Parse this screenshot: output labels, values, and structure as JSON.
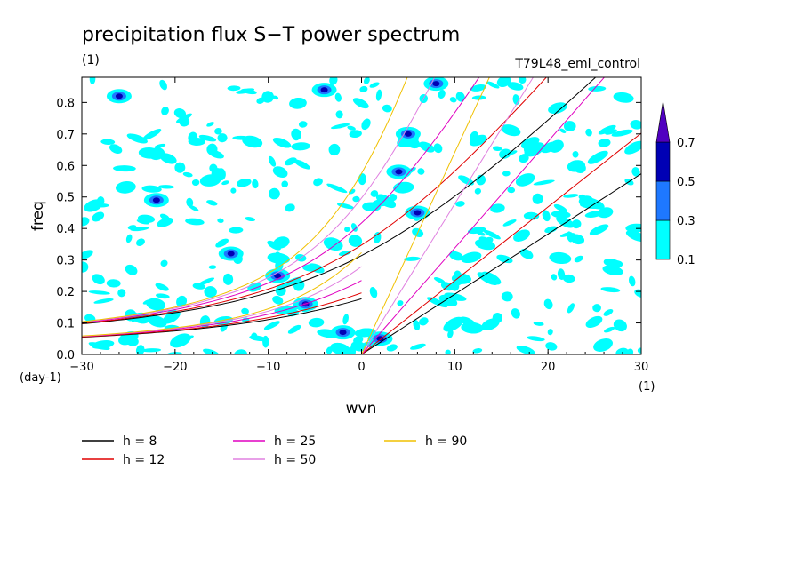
{
  "chart_data": {
    "type": "heatmap",
    "title": "precipitation flux S−T power spectrum",
    "units_label": "(1)",
    "run_label": "T79L48_eml_control",
    "xlabel": "wvn",
    "ylabel": "freq",
    "x_unit": "(1)",
    "y_unit": "(day-1)",
    "xlim": [
      -30,
      30
    ],
    "ylim": [
      0,
      0.88
    ],
    "x_ticks": [
      -30,
      -20,
      -10,
      0,
      10,
      20,
      30
    ],
    "y_ticks": [
      0.0,
      0.1,
      0.2,
      0.3,
      0.4,
      0.5,
      0.6,
      0.7,
      0.8
    ],
    "x_tick_labels": [
      "−30",
      "−20",
      "−10",
      "0",
      "10",
      "20",
      "30"
    ],
    "y_tick_labels": [
      "0.0",
      "0.1",
      "0.2",
      "0.3",
      "0.4",
      "0.5",
      "0.6",
      "0.7",
      "0.8"
    ],
    "colorbar": {
      "levels": [
        0.1,
        0.3,
        0.5,
        0.7
      ],
      "labels": [
        "0.1",
        "0.3",
        "0.5",
        "0.7"
      ],
      "colors": [
        "#00ffff",
        "#1e78ff",
        "#0000b4",
        "#5000c0"
      ],
      "extend": "max"
    },
    "dispersion_curves": [
      {
        "name": "h =  8",
        "h": 8,
        "color": "#000000"
      },
      {
        "name": "h = 12",
        "h": 12,
        "color": "#e00000"
      },
      {
        "name": "h = 25",
        "h": 25,
        "color": "#e000c0"
      },
      {
        "name": "h = 50",
        "h": 50,
        "color": "#e080e0"
      },
      {
        "name": "h = 90",
        "h": 90,
        "color": "#f0c000"
      }
    ],
    "features": [
      {
        "x": -26,
        "y": 0.82,
        "value": 0.5
      },
      {
        "x": -22,
        "y": 0.49,
        "value": 0.5
      },
      {
        "x": -14,
        "y": 0.32,
        "value": 0.5
      },
      {
        "x": -9,
        "y": 0.25,
        "value": 0.5
      },
      {
        "x": -6,
        "y": 0.16,
        "value": 0.7
      },
      {
        "x": -4,
        "y": 0.84,
        "value": 0.5
      },
      {
        "x": 4,
        "y": 0.58,
        "value": 0.5
      },
      {
        "x": 6,
        "y": 0.45,
        "value": 0.5
      },
      {
        "x": 8,
        "y": 0.86,
        "value": 0.5
      },
      {
        "x": 5,
        "y": 0.7,
        "value": 0.5
      },
      {
        "x": -2,
        "y": 0.07,
        "value": 0.5
      },
      {
        "x": 2,
        "y": 0.05,
        "value": 0.5
      }
    ]
  }
}
